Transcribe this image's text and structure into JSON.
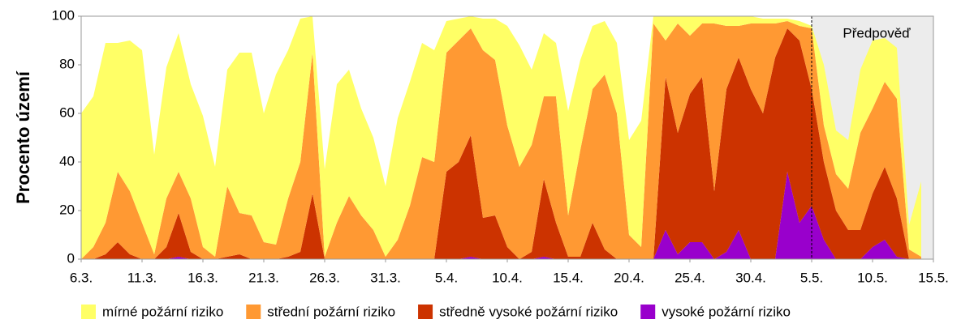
{
  "chart_data": {
    "type": "stacked_area",
    "y_label": "Procento území",
    "annotation": "Předpověď",
    "categories": [
      "6.3.",
      null,
      null,
      null,
      null,
      "11.3.",
      null,
      null,
      null,
      null,
      "16.3.",
      null,
      null,
      null,
      null,
      "21.3.",
      null,
      null,
      null,
      null,
      "26.3.",
      null,
      null,
      null,
      null,
      "31.3.",
      null,
      null,
      null,
      null,
      "5.4.",
      null,
      null,
      null,
      null,
      "10.4.",
      null,
      null,
      null,
      null,
      "15.4.",
      null,
      null,
      null,
      null,
      "20.4.",
      null,
      null,
      null,
      null,
      "25.4.",
      null,
      null,
      null,
      null,
      "30.4.",
      null,
      null,
      null,
      null,
      "5.5.",
      null,
      null,
      null,
      null,
      "10.5.",
      null,
      null,
      null,
      null,
      "15.5."
    ],
    "ylim": [
      0,
      100
    ],
    "yticks": [
      0,
      20,
      40,
      60,
      80,
      100
    ],
    "series": [
      {
        "name": "mírné požární riziko",
        "color": "#ffff66",
        "values": [
          60,
          62,
          74,
          53,
          62,
          71,
          41,
          54,
          57,
          47,
          54,
          37,
          48,
          66,
          67,
          53,
          70,
          61,
          59,
          15,
          36,
          57,
          52,
          44,
          38,
          29,
          50,
          51,
          47,
          46,
          13,
          9,
          5,
          13,
          17,
          41,
          50,
          31,
          26,
          22,
          43,
          37,
          26,
          22,
          29,
          39,
          52,
          3,
          10,
          3,
          8,
          3,
          3,
          4,
          4,
          3,
          2,
          2,
          1,
          2,
          1,
          25,
          18,
          20,
          26,
          28,
          18,
          21,
          10,
          31,
          null
        ]
      },
      {
        "name": "střední požární riziko",
        "color": "#ff9933",
        "values": [
          0,
          5,
          13,
          29,
          26,
          15,
          2,
          20,
          17,
          22,
          5,
          1,
          29,
          17,
          18,
          7,
          6,
          24,
          37,
          58,
          1,
          15,
          26,
          18,
          12,
          1,
          8,
          22,
          42,
          40,
          49,
          50,
          44,
          69,
          64,
          50,
          38,
          44,
          34,
          52,
          17,
          44,
          55,
          72,
          60,
          10,
          5,
          97,
          15,
          45,
          24,
          22,
          69,
          26,
          13,
          27,
          37,
          14,
          3,
          6,
          25,
          15,
          15,
          17,
          40,
          35,
          35,
          41,
          4,
          1,
          null
        ]
      },
      {
        "name": "středně vysoké požární riziko",
        "color": "#cc3300",
        "values": [
          0,
          0,
          2,
          7,
          2,
          0,
          0,
          5,
          18,
          3,
          0,
          0,
          1,
          2,
          0,
          0,
          0,
          1,
          3,
          27,
          0,
          0,
          0,
          0,
          0,
          0,
          0,
          0,
          0,
          0,
          36,
          40,
          50,
          17,
          18,
          5,
          0,
          3,
          32,
          15,
          1,
          1,
          15,
          4,
          0,
          0,
          0,
          0,
          63,
          50,
          61,
          68,
          28,
          67,
          71,
          70,
          60,
          83,
          59,
          75,
          48,
          32,
          20,
          12,
          12,
          22,
          30,
          24,
          0,
          0,
          null
        ]
      },
      {
        "name": "vysoké požární riziko",
        "color": "#9900cc",
        "values": [
          0,
          0,
          0,
          0,
          0,
          0,
          0,
          0,
          1,
          0,
          0,
          0,
          0,
          0,
          0,
          0,
          0,
          0,
          0,
          0,
          0,
          0,
          0,
          0,
          0,
          0,
          0,
          0,
          0,
          0,
          0,
          0,
          1,
          0,
          0,
          0,
          0,
          0,
          1,
          0,
          0,
          0,
          0,
          0,
          0,
          0,
          0,
          0,
          12,
          2,
          7,
          7,
          0,
          3,
          12,
          0,
          0,
          0,
          36,
          15,
          22,
          8,
          0,
          0,
          0,
          5,
          8,
          1,
          0,
          0,
          null
        ]
      }
    ]
  }
}
